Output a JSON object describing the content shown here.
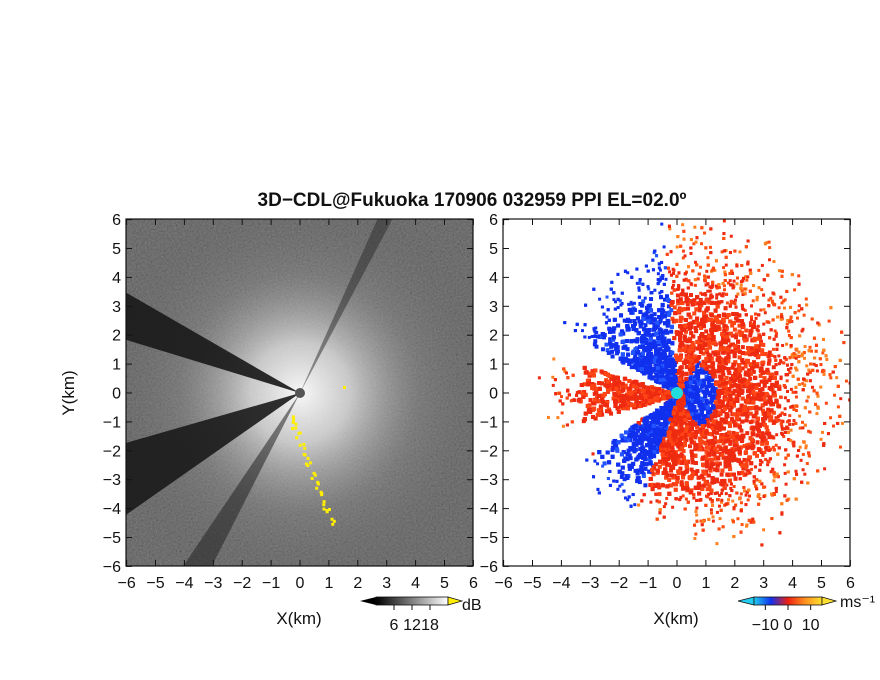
{
  "title": "3D−CDL@Fukuoka 170906 032959 PPI EL=02.0º",
  "colors": {
    "background": "#ffffff",
    "axis": "#111111",
    "radar_center": "#555555",
    "velocity_center": "#22dddd",
    "highlight_yellow": "#ffee00"
  },
  "chart_data": [
    {
      "type": "heatmap",
      "name": "intensity",
      "xlabel": "X(km)",
      "ylabel": "Y(km)",
      "xlim": [
        -6,
        6
      ],
      "ylim": [
        -6,
        6
      ],
      "x_ticks": [
        "−6",
        "−5",
        "−4",
        "−3",
        "−2",
        "−1",
        "0",
        "1",
        "2",
        "3",
        "4",
        "5",
        "6"
      ],
      "y_ticks": [
        "6",
        "5",
        "4",
        "3",
        "2",
        "1",
        "0",
        "−1",
        "−2",
        "−3",
        "−4",
        "−5",
        "−6"
      ],
      "colorbar": {
        "unit": "dB",
        "ticks": [
          "6",
          "12",
          "18"
        ],
        "range": [
          0,
          24
        ],
        "colormap": "grayscale"
      }
    },
    {
      "type": "heatmap",
      "name": "velocity",
      "xlabel": "X(km)",
      "xlim": [
        -6,
        6
      ],
      "ylim": [
        -6,
        6
      ],
      "x_ticks": [
        "−6",
        "−5",
        "−4",
        "−3",
        "−2",
        "−1",
        "0",
        "1",
        "2",
        "3",
        "4",
        "5",
        "6"
      ],
      "y_ticks": [
        "6",
        "5",
        "4",
        "3",
        "2",
        "1",
        "0",
        "−1",
        "−2",
        "−3",
        "−4",
        "−5",
        "−6"
      ],
      "colorbar": {
        "unit": "ms⁻¹",
        "ticks": [
          "−10",
          "0",
          "10"
        ],
        "range": [
          -15,
          15
        ],
        "colormap": [
          "#22ccee",
          "#1030ee",
          "#ee2010",
          "#ff9020",
          "#ffe030"
        ]
      }
    }
  ]
}
